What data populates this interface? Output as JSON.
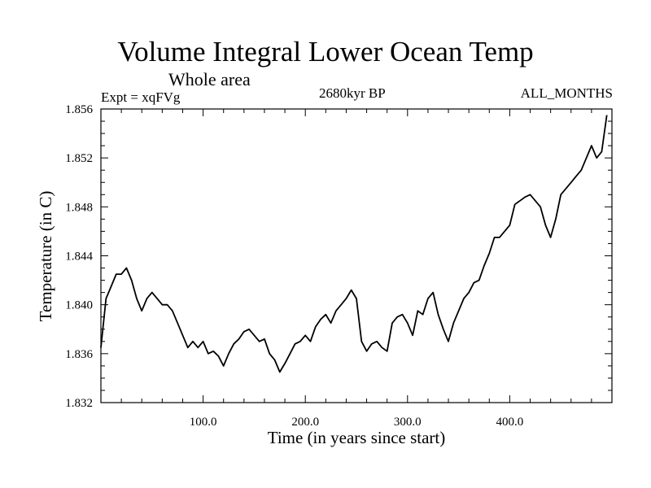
{
  "chart_data": {
    "type": "line",
    "title": "Volume Integral Lower Ocean Temp",
    "subtitle": "Whole area",
    "left_label": "Expt = xqFVg",
    "center_label": "2680kyr BP",
    "right_label": "ALL_MONTHS",
    "xlabel": "Time (in years since start)",
    "ylabel": "Temperature (in C)",
    "xlim": [
      0,
      500
    ],
    "ylim": [
      1.832,
      1.856
    ],
    "xticks": [
      100,
      200,
      300,
      400
    ],
    "xtick_labels": [
      "100.0",
      "200.0",
      "300.0",
      "400.0"
    ],
    "yticks": [
      1.832,
      1.836,
      1.84,
      1.844,
      1.848,
      1.852,
      1.856
    ],
    "ytick_labels": [
      "1.832",
      "1.836",
      "1.840",
      "1.844",
      "1.848",
      "1.852",
      "1.856"
    ],
    "grid": false,
    "series": [
      {
        "name": "Temperature",
        "x": [
          0,
          5,
          10,
          15,
          20,
          25,
          30,
          35,
          40,
          45,
          50,
          55,
          60,
          65,
          70,
          75,
          80,
          85,
          90,
          95,
          100,
          105,
          110,
          115,
          120,
          125,
          130,
          135,
          140,
          145,
          150,
          155,
          160,
          165,
          170,
          175,
          180,
          185,
          190,
          195,
          200,
          205,
          210,
          215,
          220,
          225,
          230,
          235,
          240,
          245,
          250,
          255,
          260,
          265,
          270,
          275,
          280,
          285,
          290,
          295,
          300,
          305,
          310,
          315,
          320,
          325,
          330,
          335,
          340,
          345,
          350,
          355,
          360,
          365,
          370,
          375,
          380,
          385,
          390,
          395,
          400,
          405,
          410,
          415,
          420,
          425,
          430,
          435,
          440,
          445,
          450,
          455,
          460,
          465,
          470,
          475,
          480,
          485,
          490,
          495
        ],
        "values": [
          1.8365,
          1.8405,
          1.8415,
          1.8425,
          1.8425,
          1.843,
          1.842,
          1.8405,
          1.8395,
          1.8405,
          1.841,
          1.8405,
          1.84,
          1.84,
          1.8395,
          1.8385,
          1.8375,
          1.8365,
          1.837,
          1.8365,
          1.837,
          1.836,
          1.8362,
          1.8358,
          1.835,
          1.836,
          1.8368,
          1.8372,
          1.8378,
          1.838,
          1.8375,
          1.837,
          1.8372,
          1.836,
          1.8355,
          1.8345,
          1.8352,
          1.836,
          1.8368,
          1.837,
          1.8375,
          1.837,
          1.8382,
          1.8388,
          1.8392,
          1.8385,
          1.8395,
          1.84,
          1.8405,
          1.8412,
          1.8405,
          1.837,
          1.8362,
          1.8368,
          1.837,
          1.8365,
          1.8362,
          1.8385,
          1.839,
          1.8392,
          1.8385,
          1.8375,
          1.8395,
          1.8392,
          1.8405,
          1.841,
          1.8392,
          1.838,
          1.837,
          1.8385,
          1.8395,
          1.8405,
          1.841,
          1.8418,
          1.842,
          1.8432,
          1.8442,
          1.8455,
          1.8455,
          1.846,
          1.8465,
          1.8482,
          1.8485,
          1.8488,
          1.849,
          1.8485,
          1.848,
          1.8465,
          1.8455,
          1.847,
          1.849,
          1.8495,
          1.85,
          1.8505,
          1.851,
          1.852,
          1.853,
          1.852,
          1.8525,
          1.8555
        ]
      }
    ]
  }
}
